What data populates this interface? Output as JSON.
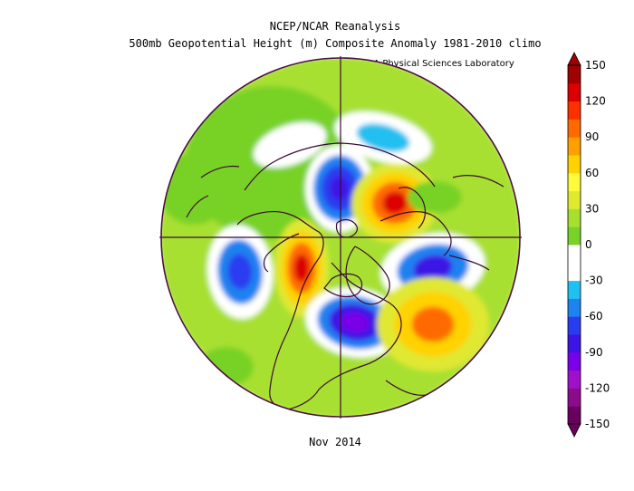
{
  "title_line1": "NCEP/NCAR Reanalysis",
  "title_line2": "500mb Geopotential Height (m) Composite Anomaly 1981-2010 climo",
  "credit": "NOAA Physical Sciences Laboratory",
  "date_label": "Nov 2014",
  "colorbar": {
    "tick_labels": [
      "150",
      "120",
      "90",
      "60",
      "30",
      "0",
      "-30",
      "-60",
      "-90",
      "-120",
      "-150"
    ],
    "colors": [
      "#6a005e",
      "#8c0a8c",
      "#a010c8",
      "#7a00e8",
      "#3c14e6",
      "#2a3cf0",
      "#1e82f0",
      "#20c0f0",
      "#ffffff",
      "#ffffff",
      "#78d228",
      "#a8e030",
      "#e0e830",
      "#fffb3c",
      "#ffd200",
      "#ffa000",
      "#ff6a00",
      "#ff3000",
      "#dc0000",
      "#a00000"
    ]
  },
  "map": {
    "projection": "polar stereographic, north pole",
    "anomaly_centers": [
      {
        "region": "Arctic / Siberia",
        "value": -90
      },
      {
        "region": "Scandinavia / Ural",
        "value": 120
      },
      {
        "region": "Alaska / Bering",
        "value": 120
      },
      {
        "region": "North Pacific",
        "value": -75
      },
      {
        "region": "Central North America",
        "value": -105
      },
      {
        "region": "Central North Atlantic",
        "value": 90
      },
      {
        "region": "Europe / Mediterranean",
        "value": -90
      },
      {
        "region": "East Siberia",
        "value": -45
      }
    ],
    "colors": {
      "outline": "#4a1040",
      "land_line": "#3b0a35"
    }
  }
}
